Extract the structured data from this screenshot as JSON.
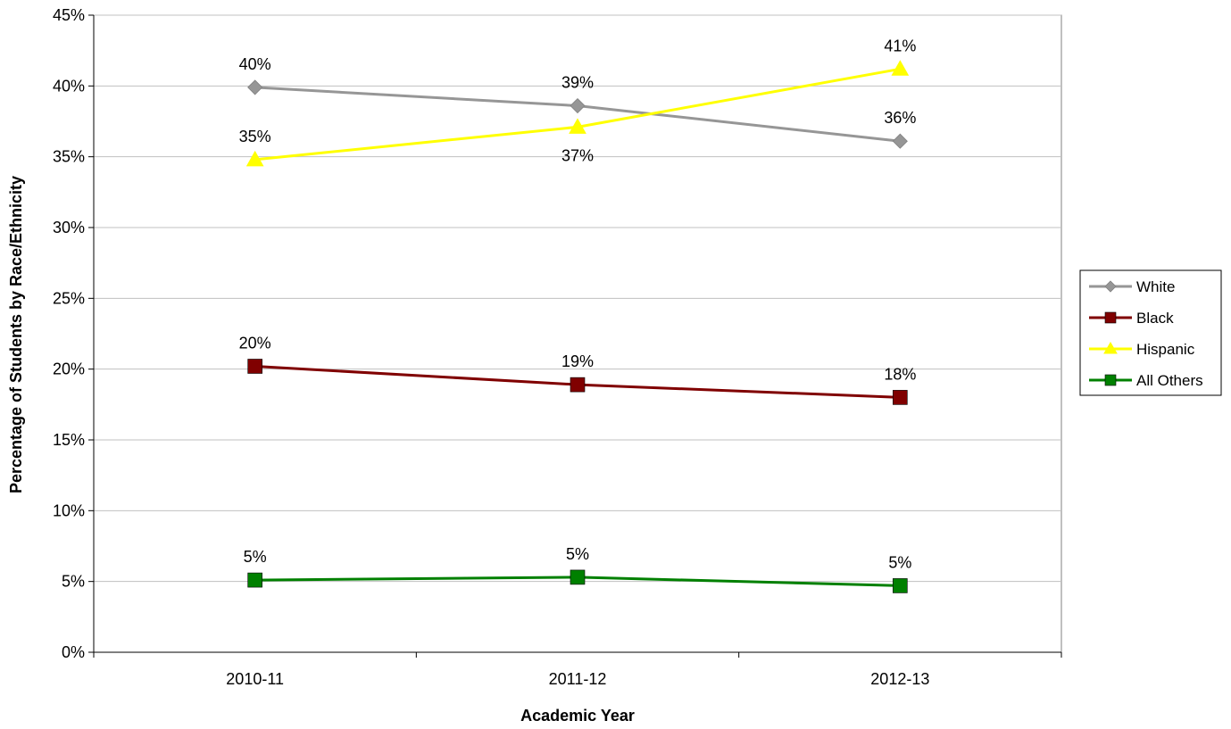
{
  "chart_data": {
    "type": "line",
    "title": "",
    "xlabel": "Academic Year",
    "ylabel": "Percentage of Students by Race/Ethnicity",
    "categories": [
      "2010-11",
      "2011-12",
      "2012-13"
    ],
    "ylim": [
      0,
      45
    ],
    "yticks": [
      0,
      5,
      10,
      15,
      20,
      25,
      30,
      35,
      40,
      45
    ],
    "ytick_labels": [
      "0%",
      "5%",
      "10%",
      "15%",
      "20%",
      "25%",
      "30%",
      "35%",
      "40%",
      "45%"
    ],
    "grid": true,
    "legend_position": "right",
    "series": [
      {
        "name": "White",
        "color": "#969696",
        "marker": "diamond",
        "values": [
          39.9,
          38.6,
          36.1
        ],
        "labels": [
          "40%",
          "39%",
          "36%"
        ],
        "label_position": [
          "above",
          "above",
          "above"
        ]
      },
      {
        "name": "Black",
        "color": "#800000",
        "marker": "square",
        "values": [
          20.2,
          18.9,
          18.0
        ],
        "labels": [
          "20%",
          "19%",
          "18%"
        ],
        "label_position": [
          "above",
          "above",
          "above"
        ]
      },
      {
        "name": "Hispanic",
        "color": "#ffff00",
        "marker": "triangle",
        "values": [
          34.8,
          37.1,
          41.2
        ],
        "labels": [
          "35%",
          "37%",
          "41%"
        ],
        "label_position": [
          "above",
          "below",
          "above"
        ]
      },
      {
        "name": "All Others",
        "color": "#008000",
        "marker": "square",
        "values": [
          5.1,
          5.3,
          4.7
        ],
        "labels": [
          "5%",
          "5%",
          "5%"
        ],
        "label_position": [
          "above",
          "above",
          "above"
        ]
      }
    ]
  }
}
